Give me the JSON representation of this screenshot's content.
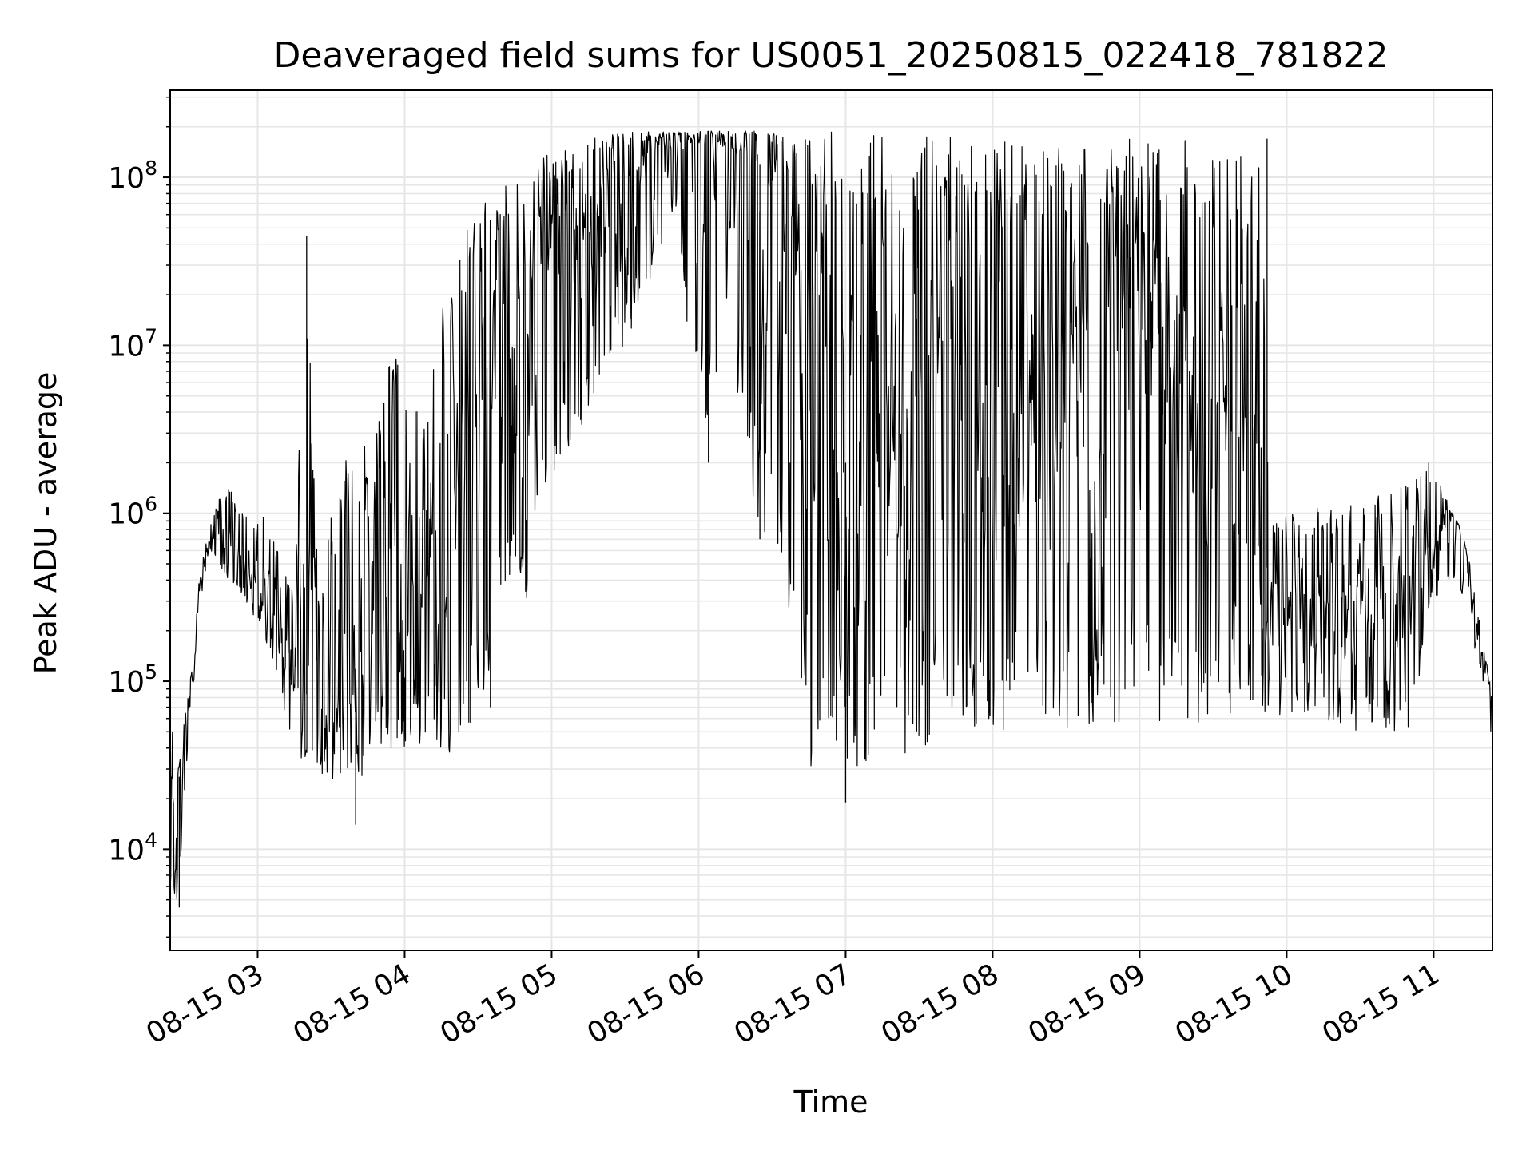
{
  "chart_data": {
    "type": "line",
    "title": "Deaveraged field sums for US0051_20250815_022418_781822",
    "xlabel": "Time",
    "ylabel": "Peak ADU - average",
    "y_scale": "log",
    "grid": true,
    "grid_minor": true,
    "line_color": "#000000",
    "grid_color": "#e6e6e6",
    "xlim": [
      "2025-08-15 02:24:18",
      "2025-08-15 11:24:00"
    ],
    "ylim": [
      2500,
      330000000
    ],
    "x_ticks": [
      {
        "t": "2025-08-15 03:00",
        "label": "08-15 03"
      },
      {
        "t": "2025-08-15 04:00",
        "label": "08-15 04"
      },
      {
        "t": "2025-08-15 05:00",
        "label": "08-15 05"
      },
      {
        "t": "2025-08-15 06:00",
        "label": "08-15 06"
      },
      {
        "t": "2025-08-15 07:00",
        "label": "08-15 07"
      },
      {
        "t": "2025-08-15 08:00",
        "label": "08-15 08"
      },
      {
        "t": "2025-08-15 09:00",
        "label": "08-15 09"
      },
      {
        "t": "2025-08-15 10:00",
        "label": "08-15 10"
      },
      {
        "t": "2025-08-15 11:00",
        "label": "08-15 11"
      }
    ],
    "y_ticks": [
      {
        "exp": 4,
        "base": "10",
        "sup": "4"
      },
      {
        "exp": 5,
        "base": "10",
        "sup": "5"
      },
      {
        "exp": 6,
        "base": "10",
        "sup": "6"
      },
      {
        "exp": 7,
        "base": "10",
        "sup": "7"
      },
      {
        "exp": 8,
        "base": "10",
        "sup": "8"
      }
    ],
    "series": [
      {
        "upper": [
          [
            "2025-08-15 02:24",
            3000
          ],
          [
            "2025-08-15 02:25",
            80000
          ],
          [
            "2025-08-15 02:27",
            25000
          ],
          [
            "2025-08-15 02:30",
            60000
          ],
          [
            "2025-08-15 02:34",
            150000
          ],
          [
            "2025-08-15 02:36",
            400000
          ],
          [
            "2025-08-15 02:40",
            800000
          ],
          [
            "2025-08-15 02:44",
            1200000
          ],
          [
            "2025-08-15 02:48",
            1500000
          ],
          [
            "2025-08-15 02:53",
            1100000
          ],
          [
            "2025-08-15 03:00",
            1000000
          ],
          [
            "2025-08-15 03:10",
            800000
          ],
          [
            "2025-08-15 03:15",
            400000
          ],
          [
            "2025-08-15 03:20",
            45000000
          ],
          [
            "2025-08-15 03:25",
            300000
          ],
          [
            "2025-08-15 03:35",
            3000000
          ],
          [
            "2025-08-15 03:45",
            2500000
          ],
          [
            "2025-08-15 03:50",
            7000000
          ],
          [
            "2025-08-15 03:58",
            10000000
          ],
          [
            "2025-08-15 04:03",
            4000000
          ],
          [
            "2025-08-15 04:10",
            5000000
          ],
          [
            "2025-08-15 04:15",
            20000000
          ],
          [
            "2025-08-15 04:22",
            40000000
          ],
          [
            "2025-08-15 04:30",
            100000000
          ],
          [
            "2025-08-15 04:35",
            60000000
          ],
          [
            "2025-08-15 04:43",
            100000000
          ],
          [
            "2025-08-15 04:50",
            120000000
          ],
          [
            "2025-08-15 05:00",
            140000000
          ],
          [
            "2025-08-15 05:10",
            150000000
          ],
          [
            "2025-08-15 05:20",
            180000000
          ],
          [
            "2025-08-15 05:40",
            190000000
          ],
          [
            "2025-08-15 06:00",
            190000000
          ],
          [
            "2025-08-15 06:40",
            190000000
          ],
          [
            "2025-08-15 07:20",
            180000000
          ],
          [
            "2025-08-15 08:00",
            170000000
          ],
          [
            "2025-08-15 08:40",
            170000000
          ],
          [
            "2025-08-15 09:10",
            170000000
          ],
          [
            "2025-08-15 09:30",
            160000000
          ],
          [
            "2025-08-15 09:40",
            150000000
          ],
          [
            "2025-08-15 09:50",
            170000000
          ],
          [
            "2025-08-15 09:53",
            900000
          ],
          [
            "2025-08-15 10:00",
            1000000
          ],
          [
            "2025-08-15 10:30",
            1200000
          ],
          [
            "2025-08-15 10:50",
            1500000
          ],
          [
            "2025-08-15 10:58",
            2000000
          ],
          [
            "2025-08-15 11:05",
            1300000
          ],
          [
            "2025-08-15 11:14",
            600000
          ],
          [
            "2025-08-15 11:20",
            180000
          ],
          [
            "2025-08-15 11:24",
            80000
          ]
        ],
        "lower": [
          [
            "2025-08-15 02:24",
            2600
          ],
          [
            "2025-08-15 02:25",
            6000
          ],
          [
            "2025-08-15 02:28",
            4500
          ],
          [
            "2025-08-15 02:30",
            20000
          ],
          [
            "2025-08-15 02:34",
            100000
          ],
          [
            "2025-08-15 02:36",
            250000
          ],
          [
            "2025-08-15 02:40",
            600000
          ],
          [
            "2025-08-15 02:44",
            500000
          ],
          [
            "2025-08-15 02:48",
            400000
          ],
          [
            "2025-08-15 02:55",
            300000
          ],
          [
            "2025-08-15 03:05",
            150000
          ],
          [
            "2025-08-15 03:15",
            35000
          ],
          [
            "2025-08-15 03:25",
            30000
          ],
          [
            "2025-08-15 03:30",
            20000
          ],
          [
            "2025-08-15 03:40",
            22000
          ],
          [
            "2025-08-15 03:50",
            40000
          ],
          [
            "2025-08-15 04:00",
            40000
          ],
          [
            "2025-08-15 04:10",
            40000
          ],
          [
            "2025-08-15 04:20",
            35000
          ],
          [
            "2025-08-15 04:30",
            70000
          ],
          [
            "2025-08-15 04:40",
            200000
          ],
          [
            "2025-08-15 04:50",
            300000
          ],
          [
            "2025-08-15 05:00",
            1500000
          ],
          [
            "2025-08-15 05:10",
            2500000
          ],
          [
            "2025-08-15 05:20",
            5000000
          ],
          [
            "2025-08-15 05:30",
            10000000
          ],
          [
            "2025-08-15 05:40",
            20000000
          ],
          [
            "2025-08-15 05:50",
            60000000
          ],
          [
            "2025-08-15 06:00",
            3000000
          ],
          [
            "2025-08-15 06:15",
            5000000
          ],
          [
            "2025-08-15 06:25",
            700000
          ],
          [
            "2025-08-15 06:35",
            400000
          ],
          [
            "2025-08-15 06:45",
            25000
          ],
          [
            "2025-08-15 07:00",
            20000
          ],
          [
            "2025-08-15 07:10",
            30000
          ],
          [
            "2025-08-15 07:30",
            40000
          ],
          [
            "2025-08-15 07:50",
            50000
          ],
          [
            "2025-08-15 08:10",
            50000
          ],
          [
            "2025-08-15 08:40",
            45000
          ],
          [
            "2025-08-15 09:10",
            50000
          ],
          [
            "2025-08-15 09:30",
            60000
          ],
          [
            "2025-08-15 09:50",
            60000
          ],
          [
            "2025-08-15 10:10",
            55000
          ],
          [
            "2025-08-15 10:30",
            50000
          ],
          [
            "2025-08-15 10:50",
            50000
          ],
          [
            "2025-08-15 11:00",
            300000
          ],
          [
            "2025-08-15 11:10",
            400000
          ],
          [
            "2025-08-15 11:20",
            100000
          ],
          [
            "2025-08-15 11:24",
            40000
          ]
        ],
        "center": [
          [
            "2025-08-15 02:24",
            3000
          ],
          [
            "2025-08-15 02:25",
            15000
          ],
          [
            "2025-08-15 02:30",
            40000
          ],
          [
            "2025-08-15 02:34",
            120000
          ],
          [
            "2025-08-15 02:36",
            300000
          ],
          [
            "2025-08-15 02:40",
            700000
          ],
          [
            "2025-08-15 02:45",
            800000
          ],
          [
            "2025-08-15 02:55",
            550000
          ],
          [
            "2025-08-15 03:05",
            250000
          ],
          [
            "2025-08-15 03:15",
            100000
          ],
          [
            "2025-08-15 03:25",
            70000
          ],
          [
            "2025-08-15 03:35",
            70000
          ],
          [
            "2025-08-15 03:45",
            200000
          ],
          [
            "2025-08-15 03:55",
            500000
          ],
          [
            "2025-08-15 04:05",
            700000
          ],
          [
            "2025-08-15 04:15",
            1000000
          ],
          [
            "2025-08-15 04:25",
            2000000
          ],
          [
            "2025-08-15 04:35",
            8000000
          ],
          [
            "2025-08-15 04:45",
            15000000
          ],
          [
            "2025-08-15 04:55",
            25000000
          ],
          [
            "2025-08-15 05:05",
            35000000
          ],
          [
            "2025-08-15 05:15",
            50000000
          ],
          [
            "2025-08-15 05:25",
            80000000
          ],
          [
            "2025-08-15 05:40",
            130000000
          ],
          [
            "2025-08-15 05:55",
            160000000
          ],
          [
            "2025-08-15 06:10",
            150000000
          ],
          [
            "2025-08-15 06:25",
            120000000
          ],
          [
            "2025-08-15 06:40",
            30000000
          ],
          [
            "2025-08-15 07:00",
            2000000
          ],
          [
            "2025-08-15 07:20",
            3000000
          ],
          [
            "2025-08-15 07:40",
            10000000
          ],
          [
            "2025-08-15 08:00",
            2000000
          ],
          [
            "2025-08-15 08:20",
            5000000
          ],
          [
            "2025-08-15 08:40",
            3000000
          ],
          [
            "2025-08-15 09:00",
            10000000
          ],
          [
            "2025-08-15 09:20",
            5000000
          ],
          [
            "2025-08-15 09:40",
            3000000
          ],
          [
            "2025-08-15 09:55",
            300000
          ],
          [
            "2025-08-15 10:10",
            250000
          ],
          [
            "2025-08-15 10:30",
            300000
          ],
          [
            "2025-08-15 10:50",
            400000
          ],
          [
            "2025-08-15 11:00",
            700000
          ],
          [
            "2025-08-15 11:10",
            900000
          ],
          [
            "2025-08-15 11:18",
            200000
          ],
          [
            "2025-08-15 11:24",
            60000
          ]
        ],
        "spikes": [
          [
            "2025-08-15 02:28",
            4500
          ],
          [
            "2025-08-15 03:20",
            45000000
          ],
          [
            "2025-08-15 03:40",
            14000
          ],
          [
            "2025-08-15 04:35",
            70000
          ],
          [
            "2025-08-15 06:04",
            2000000
          ],
          [
            "2025-08-15 06:25",
            700000
          ],
          [
            "2025-08-15 07:00",
            19000
          ],
          [
            "2025-08-15 09:52",
            170000000
          ],
          [
            "2025-08-15 10:58",
            2000000
          ]
        ]
      }
    ]
  }
}
